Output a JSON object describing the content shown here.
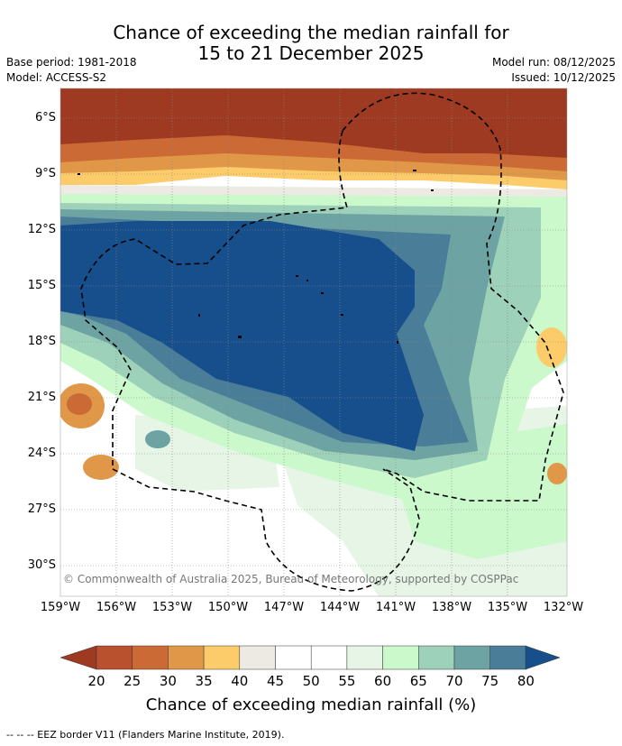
{
  "title": {
    "line1": "Chance of exceeding the median rainfall for",
    "line2": "15 to 21 December 2025"
  },
  "meta": {
    "base_period": "Base period: 1981-2018",
    "model": "Model: ACCESS-S2",
    "model_run": "Model run: 08/12/2025",
    "issued": "Issued: 10/12/2025"
  },
  "map": {
    "lat_labels": [
      "6°S",
      "9°S",
      "12°S",
      "15°S",
      "18°S",
      "21°S",
      "24°S",
      "27°S",
      "30°S"
    ],
    "lon_labels": [
      "159°W",
      "156°W",
      "153°W",
      "150°W",
      "147°W",
      "144°W",
      "141°W",
      "138°W",
      "135°W",
      "132°W"
    ],
    "copyright": "© Commonwealth of Australia 2025, Bureau of Meteorology, supported by COSPPac"
  },
  "colorbar": {
    "ticks": [
      "20",
      "25",
      "30",
      "35",
      "40",
      "45",
      "50",
      "55",
      "60",
      "65",
      "70",
      "75",
      "80"
    ],
    "colors": [
      "#a9442b",
      "#b9502e",
      "#cc6a35",
      "#e09848",
      "#fccb6a",
      "#edeae4",
      "#ffffff",
      "#ffffff",
      "#e7f5e6",
      "#cbf9cc",
      "#9ed1b9",
      "#6ea3a3",
      "#4a7d98",
      "#174f8c"
    ],
    "title": "Chance of exceeding median rainfall (%)"
  },
  "footnote": "-- -- -- EEZ border V11 (Flanders Marine Institute, 2019)."
}
